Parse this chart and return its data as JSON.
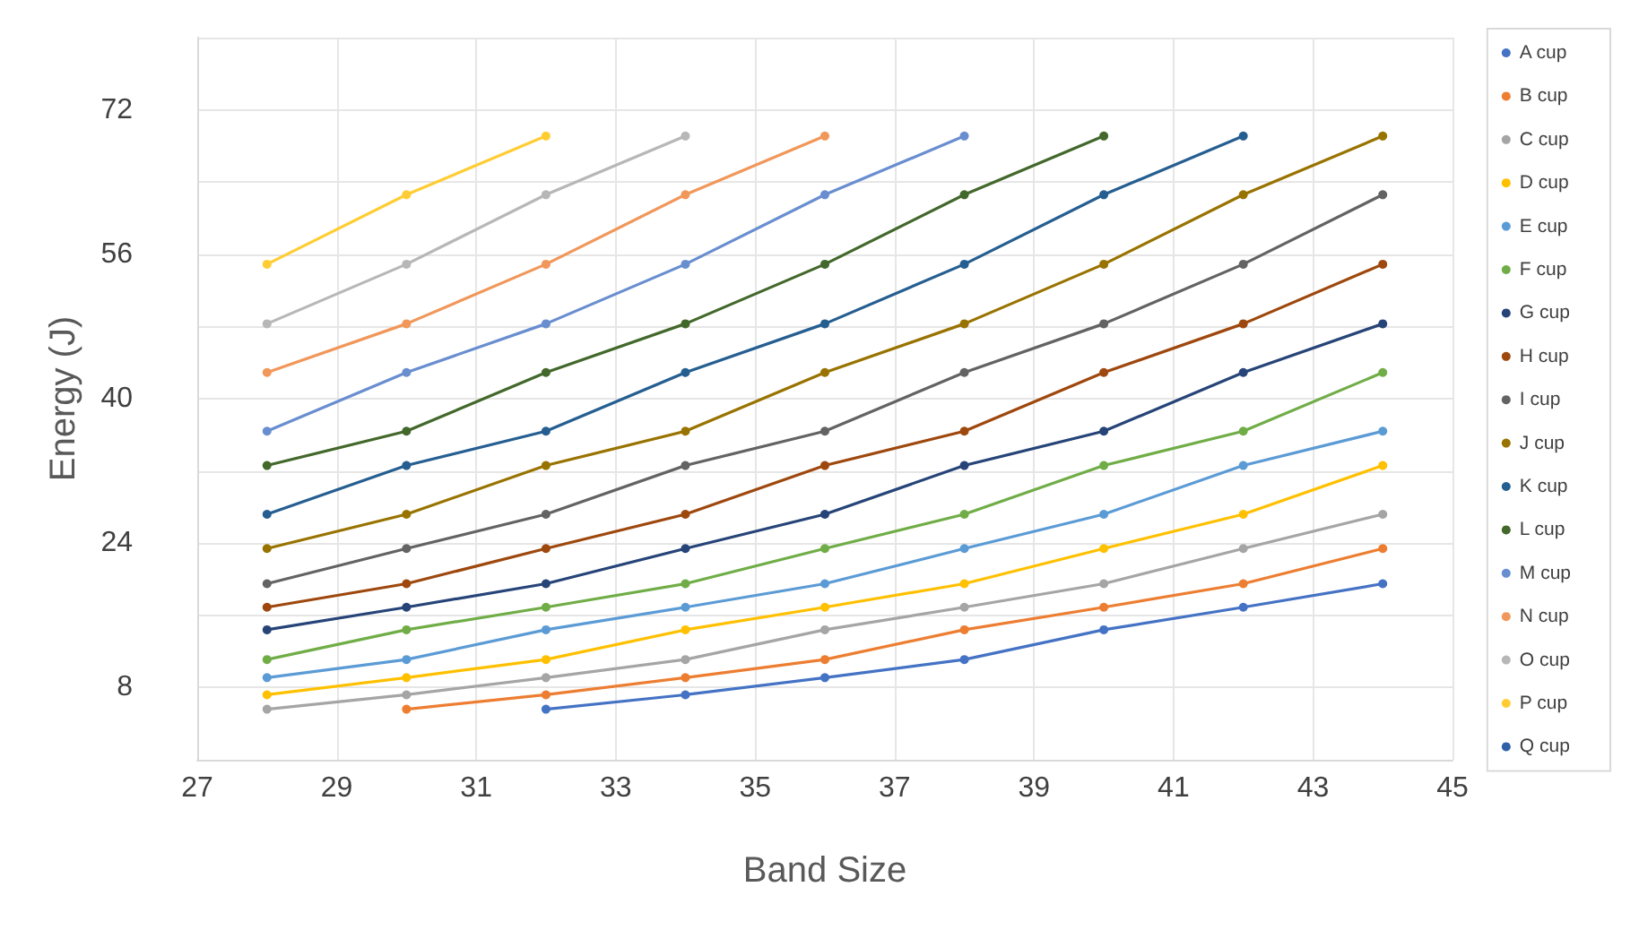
{
  "chart_data": {
    "type": "line",
    "xlabel": "Band Size",
    "ylabel": "Energy (J)",
    "xlim": [
      27,
      45
    ],
    "xticks": [
      27,
      29,
      31,
      33,
      35,
      37,
      39,
      41,
      43,
      45
    ],
    "ylim": [
      0,
      80
    ],
    "yticks": [
      {
        "value": 0,
        "label": null
      },
      8,
      {
        "value": 16,
        "label": null
      },
      24,
      {
        "value": 32,
        "label": null
      },
      40,
      {
        "value": 48,
        "label": null
      },
      56,
      {
        "value": 64,
        "label": null
      },
      72,
      {
        "value": 80,
        "label": null
      }
    ],
    "grid": true,
    "legend": "right",
    "marker": "circle",
    "line_style": "solid",
    "series": [
      {
        "name": "A cup",
        "color": "#4472c4",
        "x": [
          32,
          34,
          36,
          38,
          40,
          42,
          44
        ],
        "values": [
          5.6,
          7.2,
          9.1,
          11.1,
          14.4,
          16.9,
          19.5
        ]
      },
      {
        "name": "B cup",
        "color": "#ed7d31",
        "x": [
          30,
          32,
          34,
          36,
          38,
          40,
          42,
          44
        ],
        "values": [
          5.6,
          7.2,
          9.1,
          11.1,
          14.4,
          16.9,
          19.5,
          23.4
        ]
      },
      {
        "name": "C cup",
        "color": "#a5a5a5",
        "x": [
          28,
          30,
          32,
          34,
          36,
          38,
          40,
          42,
          44
        ],
        "values": [
          5.6,
          7.2,
          9.1,
          11.1,
          14.4,
          16.9,
          19.5,
          23.4,
          27.2
        ]
      },
      {
        "name": "D cup",
        "color": "#ffc000",
        "x": [
          28,
          30,
          32,
          34,
          36,
          38,
          40,
          42,
          44
        ],
        "values": [
          7.2,
          9.1,
          11.1,
          14.4,
          16.9,
          19.5,
          23.4,
          27.2,
          32.6
        ]
      },
      {
        "name": "E cup",
        "color": "#5b9bd5",
        "x": [
          28,
          30,
          32,
          34,
          36,
          38,
          40,
          42,
          44
        ],
        "values": [
          9.1,
          11.1,
          14.4,
          16.9,
          19.5,
          23.4,
          27.2,
          32.6,
          36.4
        ]
      },
      {
        "name": "F cup",
        "color": "#70ad47",
        "x": [
          28,
          30,
          32,
          34,
          36,
          38,
          40,
          42,
          44
        ],
        "values": [
          11.1,
          14.4,
          16.9,
          19.5,
          23.4,
          27.2,
          32.6,
          36.4,
          42.9
        ]
      },
      {
        "name": "G cup",
        "color": "#264478",
        "x": [
          28,
          30,
          32,
          34,
          36,
          38,
          40,
          42,
          44
        ],
        "values": [
          14.4,
          16.9,
          19.5,
          23.4,
          27.2,
          32.6,
          36.4,
          42.9,
          48.3
        ]
      },
      {
        "name": "H cup",
        "color": "#9e480e",
        "x": [
          28,
          30,
          32,
          34,
          36,
          38,
          40,
          42,
          44
        ],
        "values": [
          16.9,
          19.5,
          23.4,
          27.2,
          32.6,
          36.4,
          42.9,
          48.3,
          54.9
        ]
      },
      {
        "name": "I cup",
        "color": "#636363",
        "x": [
          28,
          30,
          32,
          34,
          36,
          38,
          40,
          42,
          44
        ],
        "values": [
          19.5,
          23.4,
          27.2,
          32.6,
          36.4,
          42.9,
          48.3,
          54.9,
          62.6
        ]
      },
      {
        "name": "J cup",
        "color": "#997300",
        "x": [
          28,
          30,
          32,
          34,
          36,
          38,
          40,
          42,
          44
        ],
        "values": [
          23.4,
          27.2,
          32.6,
          36.4,
          42.9,
          48.3,
          54.9,
          62.6,
          69.1
        ]
      },
      {
        "name": "K cup",
        "color": "#255e91",
        "x": [
          28,
          30,
          32,
          34,
          36,
          38,
          40,
          42
        ],
        "values": [
          27.2,
          32.6,
          36.4,
          42.9,
          48.3,
          54.9,
          62.6,
          69.1
        ]
      },
      {
        "name": "L cup",
        "color": "#43682b",
        "x": [
          28,
          30,
          32,
          34,
          36,
          38,
          40
        ],
        "values": [
          32.6,
          36.4,
          42.9,
          48.3,
          54.9,
          62.6,
          69.1
        ]
      },
      {
        "name": "M cup",
        "color": "#698ed0",
        "x": [
          28,
          30,
          32,
          34,
          36,
          38
        ],
        "values": [
          36.4,
          42.9,
          48.3,
          54.9,
          62.6,
          69.1
        ]
      },
      {
        "name": "N cup",
        "color": "#f1975a",
        "x": [
          28,
          30,
          32,
          34,
          36
        ],
        "values": [
          42.9,
          48.3,
          54.9,
          62.6,
          69.1
        ]
      },
      {
        "name": "O cup",
        "color": "#b7b7b7",
        "x": [
          28,
          30,
          32,
          34
        ],
        "values": [
          48.3,
          54.9,
          62.6,
          69.1
        ]
      },
      {
        "name": "P cup",
        "color": "#ffcd33",
        "x": [
          28,
          30,
          32
        ],
        "values": [
          54.9,
          62.6,
          69.1
        ]
      },
      {
        "name": "Q cup",
        "color": "#2e5fa8"
      }
    ]
  }
}
